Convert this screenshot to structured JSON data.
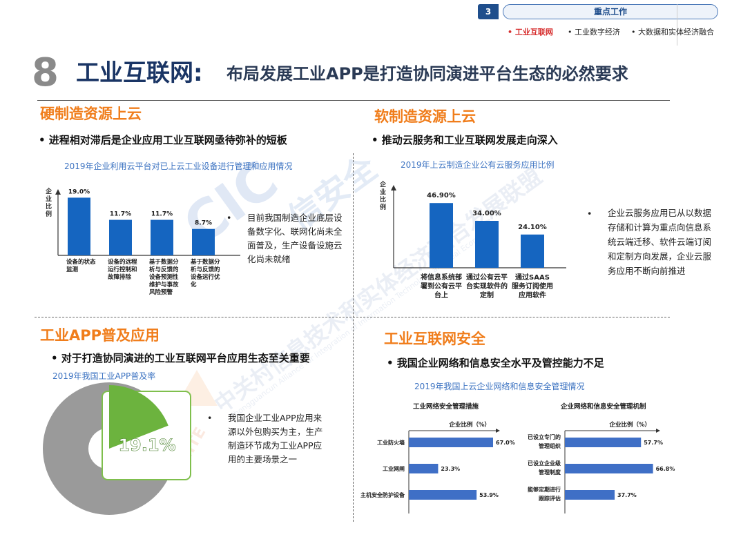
{
  "topbar": {
    "page_badge": "3",
    "section": "重点工作",
    "subnav": [
      "• 工业互联网",
      "• 工业数字经济",
      "• 大数据和实体经济融合"
    ]
  },
  "header": {
    "number": "8",
    "title": "工业互联网:",
    "subtitle": "布局发展工业APP是打造协同演进平台生态的必然要求"
  },
  "quadrants": {
    "top_left": {
      "title": "硬制造资源上云",
      "bullet": "•  进程相对滞后是企业应用工业互联网亟待弥补的短板",
      "caption": "2019年企业利用云平台对已上云工业设备进行管理和应用情况",
      "desc": "目前我国制造企业底层设备数字化、联网化尚未全面普及，生产设备设施云化尚未就绪",
      "desc_bullet": "•"
    },
    "top_right": {
      "title": "软制造资源上云",
      "bullet": "•  推动云服务和工业互联网发展走向深入",
      "caption": "2019年上云制造企业公有云服务应用比例",
      "desc": "企业云服务应用已从以数据存储和计算为重点向信息系统云端迁移、软件云端订阅和定制方向发展，企业云服务应用不断向前推进",
      "desc_bullet": "•"
    },
    "bottom_left": {
      "title": "工业APP普及应用",
      "bullet": "•  对于打造协同演进的工业互联网平台应用生态至关重要",
      "caption": "2019年我国工业APP普及率",
      "desc": "我国企业工业APP应用来源以外包购买为主，生产制造环节成为工业APP应用的主要场景之一",
      "desc_bullet": "•"
    },
    "bottom_right": {
      "title": "工业互联网安全",
      "bullet": "•  我国企业网络和信息安全水平及管控能力不足",
      "caption": "2019年我国上云企业网络和信息安全管理情况"
    }
  },
  "chart_data": [
    {
      "type": "bar",
      "ylabel": "企业比例",
      "categories": [
        "设备的状态监测",
        "设备的远程运行控制和故障排除",
        "基于数据分析与反馈的设备预测性维护与事故风险预警",
        "基于数据分析与反馈的设备运行优化"
      ],
      "values": [
        19.0,
        11.7,
        11.7,
        8.7
      ],
      "value_labels": [
        "19.0%",
        "11.7%",
        "11.7%",
        "8.7%"
      ],
      "colors": [
        "#1565c0"
      ]
    },
    {
      "type": "bar",
      "ylabel": "企业比例",
      "categories": [
        "将信息系统部署到公有云平台上",
        "通过公有云平台实现软件的定制",
        "通过SAAS服务订阅使用应用软件"
      ],
      "values": [
        46.9,
        34.0,
        24.1
      ],
      "value_labels": [
        "46.90%",
        "34.00%",
        "24.10%"
      ],
      "colors": [
        "#1565c0"
      ]
    },
    {
      "type": "pie",
      "categories": [
        "工业APP普及",
        "其他"
      ],
      "values": [
        19.1,
        80.9
      ],
      "label": "19.1%",
      "colors": [
        "#6cb33e",
        "#9a9a9a"
      ]
    },
    {
      "type": "bar",
      "orientation": "horizontal",
      "title": "工业网络安全管理措施",
      "xlabel": "企业比例（%）",
      "categories": [
        "工业防火墙",
        "工业网闸",
        "主机安全防护设备"
      ],
      "values": [
        67.0,
        23.3,
        53.9
      ],
      "value_labels": [
        "67.0%",
        "23.3%",
        "53.9%"
      ],
      "colors": [
        "#3f6fc6"
      ]
    },
    {
      "type": "bar",
      "orientation": "horizontal",
      "title": "企业网络和信息安全管理机制",
      "xlabel": "企业比例（%）",
      "categories": [
        "已设立专门的管理组织",
        "已设立企业级管理制度",
        "能够定期进行跟踪评估"
      ],
      "values": [
        57.7,
        66.8,
        37.7
      ],
      "value_labels": [
        "57.7%",
        "66.8%",
        "37.7%"
      ],
      "colors": [
        "#3f6fc6"
      ]
    }
  ],
  "watermark": {
    "logo_letters": "CIC",
    "logo_cn": "信安全",
    "logo2": "AIITE",
    "line_cn": "中关村信息技术和实体经济融合发展联盟",
    "line_en": "Zhongguancun Alliance for Integration of Information Technology and Real Economy"
  }
}
